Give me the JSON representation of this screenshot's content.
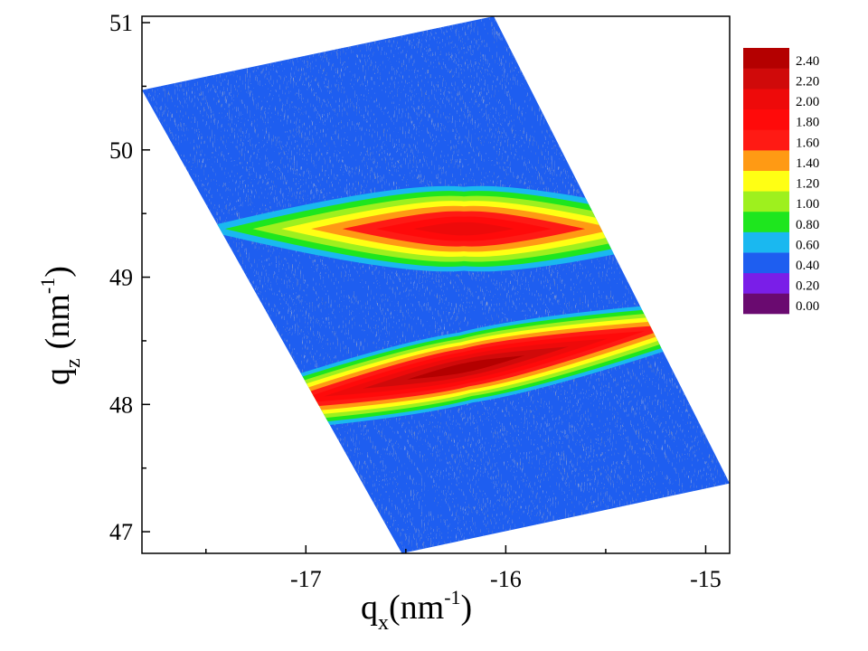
{
  "chart_data": {
    "type": "heatmap",
    "description_of_data": "reciprocal space map intensity (log scale), two elongated peaks",
    "xlabel_main": "q",
    "xlabel_sub": "x",
    "xlabel_unit": "(nm",
    "xlabel_sup": "-1",
    "xlabel_end": ")",
    "ylabel_main": "q",
    "ylabel_sub": "z",
    "ylabel_unit": "(nm",
    "ylabel_sup": "-1",
    "ylabel_end": ")",
    "xlim": [
      -17.82,
      -14.88
    ],
    "ylim": [
      46.83,
      51.05
    ],
    "x_ticks": [
      -17,
      -16,
      -15
    ],
    "x_tick_labels": [
      "-17",
      "-16",
      "-15"
    ],
    "x_minor_ticks": [
      -17.5,
      -16.5,
      -15.5
    ],
    "y_ticks": [
      47,
      48,
      49,
      50,
      51
    ],
    "y_tick_labels": [
      "47",
      "48",
      "49",
      "50",
      "51"
    ],
    "y_minor_ticks": [
      47.5,
      48.5,
      49.5,
      50.5
    ],
    "data_region_corners": [
      {
        "qx": -17.82,
        "qz": 50.47
      },
      {
        "qx": -16.06,
        "qz": 51.05
      },
      {
        "qx": -14.88,
        "qz": 47.38
      },
      {
        "qx": -16.52,
        "qz": 46.83
      }
    ],
    "peaks": [
      {
        "name": "",
        "qx": -16.21,
        "qz": 49.38,
        "max_level": 2.0,
        "axis_angle_deg": 0,
        "long_halfwidth_qx": 1.33,
        "short_halfwidth_qz": 0.33
      },
      {
        "name": "",
        "qx": -16.2,
        "qz": 48.29,
        "max_level": 2.4,
        "axis_angle_deg": 11.5,
        "long_halfwidth_qx": 1.9,
        "short_halfwidth_qz": 0.28
      }
    ],
    "background_level": 0.4,
    "colorbar": {
      "levels": [
        "0.00",
        "0.20",
        "0.40",
        "0.60",
        "0.80",
        "1.00",
        "1.20",
        "1.40",
        "1.60",
        "1.80",
        "2.00",
        "2.20",
        "2.40"
      ],
      "colors": [
        "#6a0a70",
        "#7a1ee8",
        "#1e5ef0",
        "#1ab8f0",
        "#1ee61e",
        "#9ef01e",
        "#ffff14",
        "#ff9a14",
        "#ff1a14",
        "#ff0a0a",
        "#ee0a0a",
        "#d00a0a",
        "#b40000"
      ]
    }
  }
}
